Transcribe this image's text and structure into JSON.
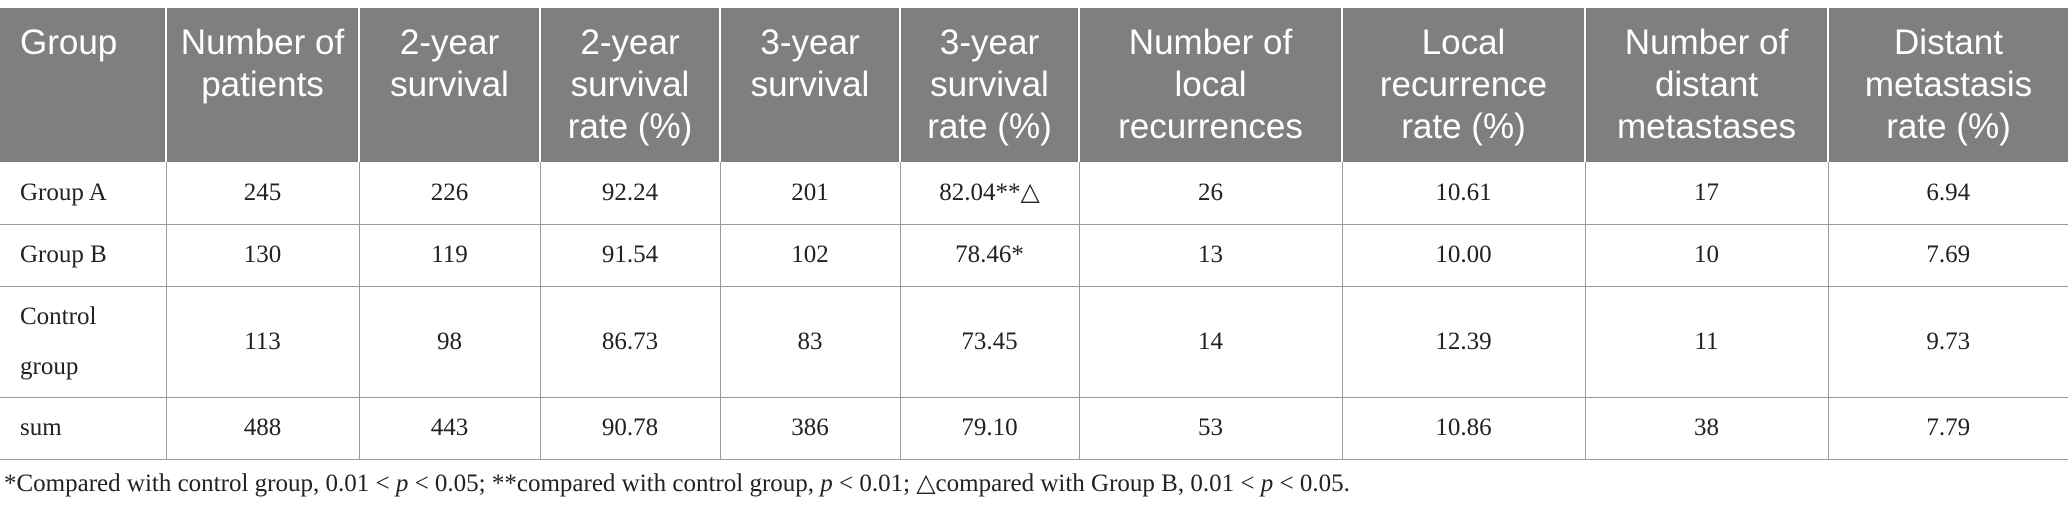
{
  "table": {
    "headers": [
      "Group",
      "Number of patients",
      "2-year survival",
      "2-year survival rate (%)",
      "3-year survival",
      "3-year survival rate (%)",
      "Number of local recurrences",
      "Local recurrence rate (%)",
      "Number of distant metastases",
      "Distant metastasis rate (%)"
    ],
    "rows": [
      [
        "Group A",
        "245",
        "226",
        "92.24",
        "201",
        "82.04**△",
        "26",
        "10.61",
        "17",
        "6.94"
      ],
      [
        "Group B",
        "130",
        "119",
        "91.54",
        "102",
        "78.46*",
        "13",
        "10.00",
        "10",
        "7.69"
      ],
      [
        "Control group",
        "113",
        "98",
        "86.73",
        "83",
        "73.45",
        "14",
        "12.39",
        "11",
        "9.73"
      ],
      [
        "sum",
        "488",
        "443",
        "90.78",
        "386",
        "79.10",
        "53",
        "10.86",
        "38",
        "7.79"
      ]
    ]
  },
  "footnote": {
    "part1": "*Compared with control group, 0.01 < ",
    "p": "p",
    "part2": " < 0.05; **compared with control group, ",
    "part3": " < 0.01; △compared with Group B, 0.01 < ",
    "part4": " < 0.05."
  },
  "colors": {
    "header_bg": "#7f7f7e",
    "header_text": "#ffffff",
    "rule": "#9a9a9a"
  }
}
